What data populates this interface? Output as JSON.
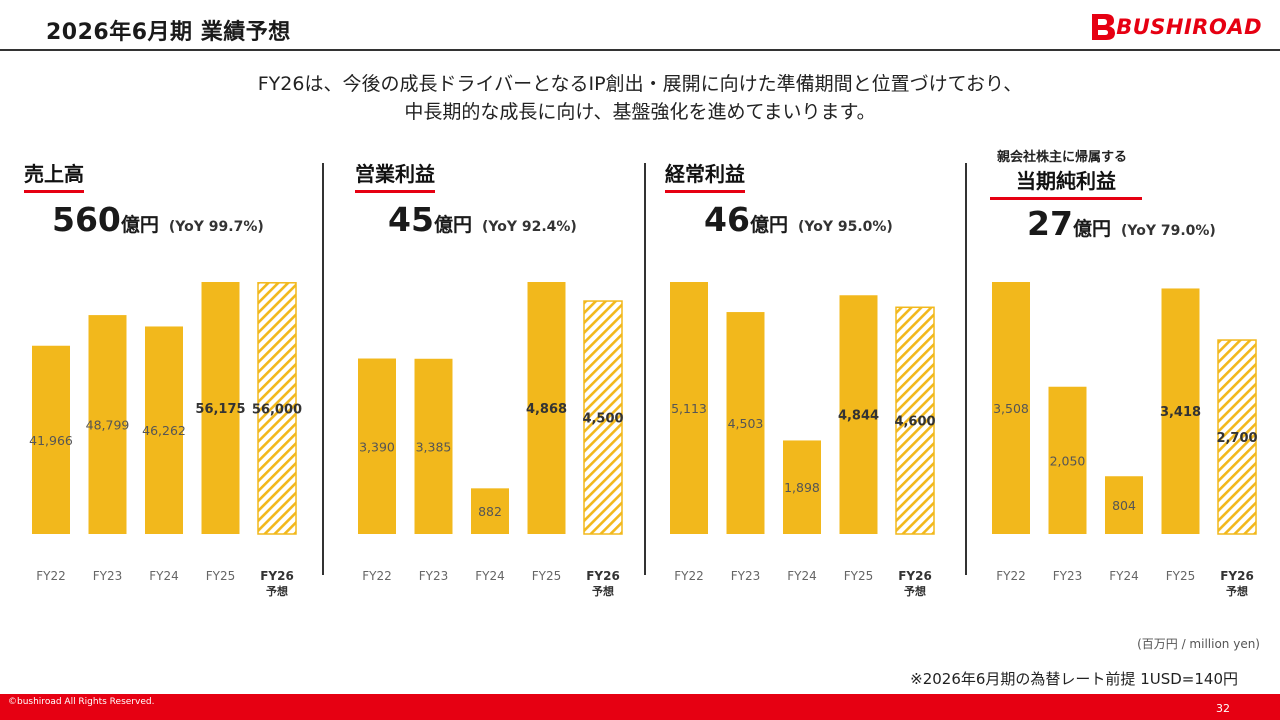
{
  "header": {
    "title": "2026年6月期 業績予想",
    "logo_text": "BUSHIROAD"
  },
  "intro": {
    "line1": "FY26は、今後の成長ドライバーとなるIP創出・展開に向けた準備期間と位置づけており、",
    "line2": "中長期的な成長に向け、基盤強化を進めてまいります。"
  },
  "colors": {
    "bar": "#f2b81c",
    "accent": "#e60012",
    "hatch_stroke": "#f2b81c"
  },
  "chart_data": [
    {
      "type": "bar",
      "title": "売上高",
      "headline": {
        "value": "560",
        "unit": "億円",
        "yoy": "(YoY 99.7%)"
      },
      "categories": [
        "FY22",
        "FY23",
        "FY24",
        "FY25",
        "FY26"
      ],
      "category_sub": [
        "",
        "",
        "",
        "",
        "予想"
      ],
      "values": [
        41966,
        48799,
        46262,
        56175,
        56000
      ],
      "labels": [
        "41,966",
        "48,799",
        "46,262",
        "56,175",
        "56,000"
      ],
      "forecast": [
        false,
        false,
        false,
        false,
        true
      ],
      "bold": [
        false,
        false,
        false,
        true,
        true
      ],
      "ylim": [
        0,
        56175
      ]
    },
    {
      "type": "bar",
      "title": "営業利益",
      "headline": {
        "value": "45",
        "unit": "億円",
        "yoy": "(YoY 92.4%)"
      },
      "categories": [
        "FY22",
        "FY23",
        "FY24",
        "FY25",
        "FY26"
      ],
      "category_sub": [
        "",
        "",
        "",
        "",
        "予想"
      ],
      "values": [
        3390,
        3385,
        882,
        4868,
        4500
      ],
      "labels": [
        "3,390",
        "3,385",
        "882",
        "4,868",
        "4,500"
      ],
      "forecast": [
        false,
        false,
        false,
        false,
        true
      ],
      "bold": [
        false,
        false,
        false,
        true,
        true
      ],
      "ylim": [
        0,
        4868
      ]
    },
    {
      "type": "bar",
      "title": "経常利益",
      "headline": {
        "value": "46",
        "unit": "億円",
        "yoy": "(YoY 95.0%)"
      },
      "categories": [
        "FY22",
        "FY23",
        "FY24",
        "FY25",
        "FY26"
      ],
      "category_sub": [
        "",
        "",
        "",
        "",
        "予想"
      ],
      "values": [
        5113,
        4503,
        1898,
        4844,
        4600
      ],
      "labels": [
        "5,113",
        "4,503",
        "1,898",
        "4,844",
        "4,600"
      ],
      "forecast": [
        false,
        false,
        false,
        false,
        true
      ],
      "bold": [
        false,
        false,
        false,
        true,
        true
      ],
      "ylim": [
        0,
        5113
      ]
    },
    {
      "type": "bar",
      "title_pre": "親会社株主に帰属する",
      "title": "当期純利益",
      "headline": {
        "value": "27",
        "unit": "億円",
        "yoy": "(YoY 79.0%)"
      },
      "categories": [
        "FY22",
        "FY23",
        "FY24",
        "FY25",
        "FY26"
      ],
      "category_sub": [
        "",
        "",
        "",
        "",
        "予想"
      ],
      "values": [
        3508,
        2050,
        804,
        3418,
        2700
      ],
      "labels": [
        "3,508",
        "2,050",
        "804",
        "3,418",
        "2,700"
      ],
      "forecast": [
        false,
        false,
        false,
        false,
        true
      ],
      "bold": [
        false,
        false,
        false,
        true,
        true
      ],
      "ylim": [
        0,
        3508
      ]
    }
  ],
  "notes": {
    "unit": "(百万円 / million yen)",
    "fx": "※2026年6月期の為替レート前提 1USD=140円"
  },
  "footer": {
    "copyright": "©bushiroad All Rights Reserved.",
    "page": "32"
  }
}
